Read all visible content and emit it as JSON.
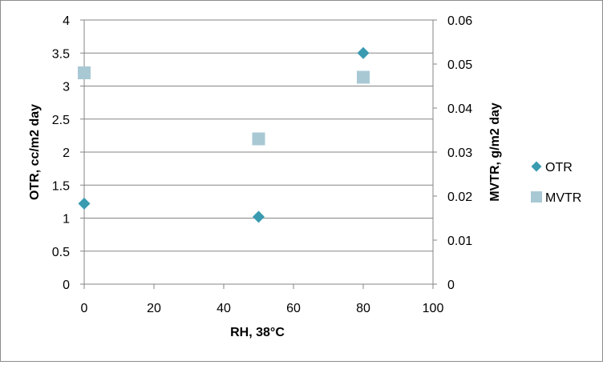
{
  "chart_data": {
    "type": "scatter",
    "title": "",
    "xlabel": "RH, 38°C",
    "ylabel": "OTR, cc/m2 day",
    "y2label": "MVTR, g/m2 day",
    "xlim": [
      0,
      100
    ],
    "ylim": [
      0,
      4
    ],
    "y2lim": [
      0,
      0.06
    ],
    "x_ticks": [
      "0",
      "20",
      "40",
      "60",
      "80",
      "100"
    ],
    "y_ticks": [
      "0",
      "0.5",
      "1",
      "1.5",
      "2",
      "2.5",
      "3",
      "3.5",
      "4"
    ],
    "y2_ticks": [
      "0",
      "0.01",
      "0.02",
      "0.03",
      "0.04",
      "0.05",
      "0.06"
    ],
    "grid": "horizontal",
    "legend_position": "right",
    "series": [
      {
        "name": "OTR",
        "axis": "left",
        "marker": "diamond",
        "color": "#3a9bb0",
        "points": [
          {
            "x": 0,
            "y": 1.22
          },
          {
            "x": 50,
            "y": 1.02
          },
          {
            "x": 80,
            "y": 3.5
          }
        ]
      },
      {
        "name": "MVTR",
        "axis": "right",
        "marker": "square",
        "color": "#a8c8d4",
        "points": [
          {
            "x": 0,
            "y": 0.048
          },
          {
            "x": 50,
            "y": 0.033
          },
          {
            "x": 80,
            "y": 0.047
          }
        ]
      }
    ]
  }
}
